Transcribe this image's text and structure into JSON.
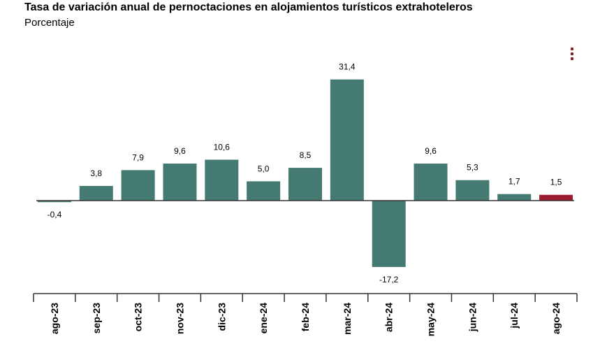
{
  "header": {
    "title": "Tasa de variación anual de pernoctaciones en alojamientos turísticos extrahoteleros",
    "subtitle": "Porcentaje"
  },
  "menu": {
    "icon": "more-vertical-icon"
  },
  "colors": {
    "bar": "#447a72",
    "highlight": "#9b1b30",
    "axis": "#333333"
  },
  "chart_data": {
    "type": "bar",
    "title": "Tasa de variación anual de pernoctaciones en alojamientos turísticos extrahoteleros",
    "subtitle": "Porcentaje",
    "categories": [
      "ago-23",
      "sep-23",
      "oct-23",
      "nov-23",
      "dic-23",
      "ene-24",
      "feb-24",
      "mar-24",
      "abr-24",
      "may-24",
      "jun-24",
      "jul-24",
      "ago-24"
    ],
    "values": [
      -0.4,
      3.8,
      7.9,
      9.6,
      10.6,
      5.0,
      8.5,
      31.4,
      -17.2,
      9.6,
      5.3,
      1.7,
      1.5
    ],
    "labels": [
      "-0,4",
      "3,8",
      "7,9",
      "9,6",
      "10,6",
      "5,0",
      "8,5",
      "31,4",
      "-17,2",
      "9,6",
      "5,3",
      "1,7",
      "1,5"
    ],
    "highlight_index": 12,
    "ylim": [
      -17.2,
      31.4
    ],
    "grid": false,
    "legend": "none"
  }
}
